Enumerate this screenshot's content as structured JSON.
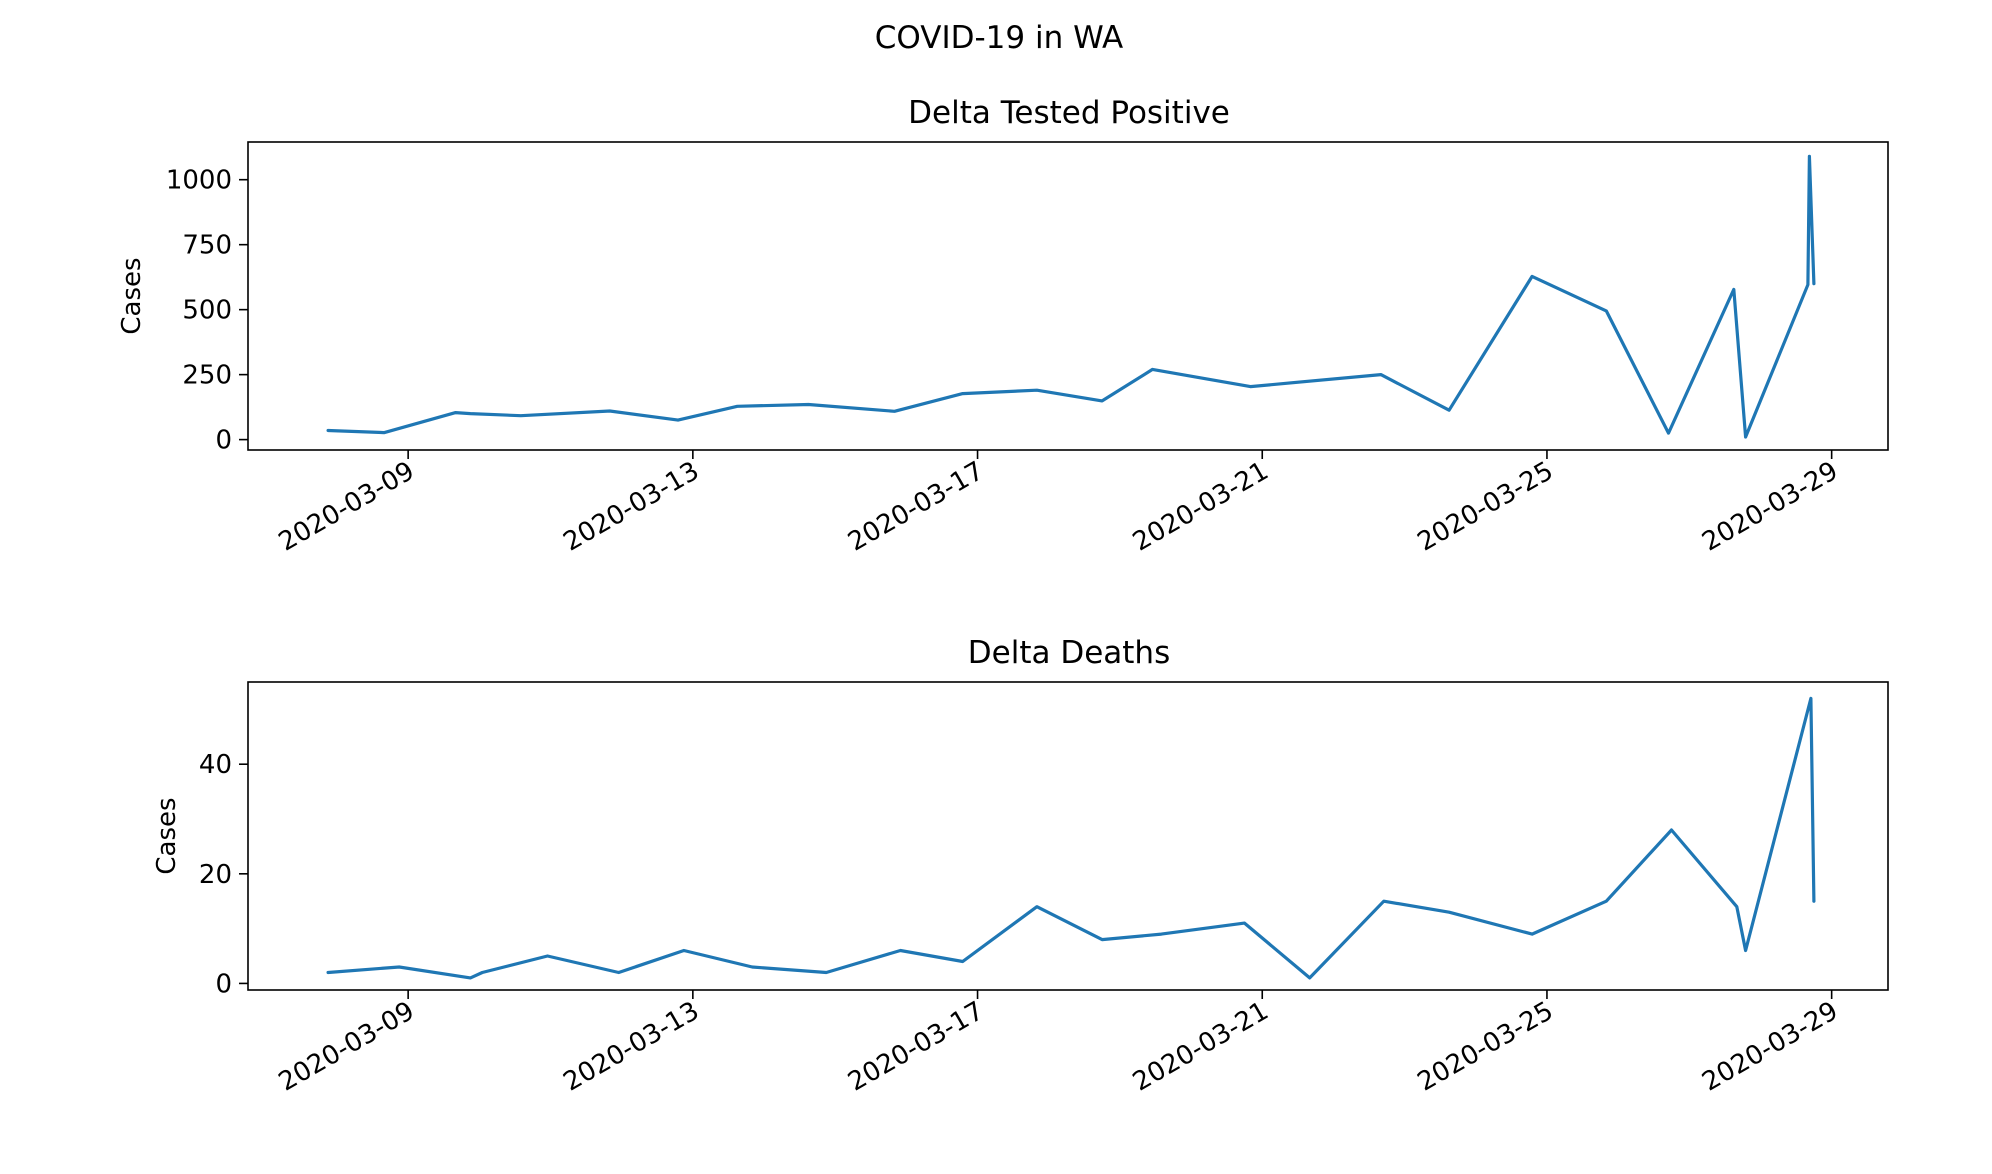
{
  "figure": {
    "suptitle": "COVID-19 in WA",
    "line_color": "#1f77b4"
  },
  "chart_data": [
    {
      "type": "line",
      "title": "Delta Tested Positive",
      "xlabel": "",
      "ylabel": "Cases",
      "xlim": [
        "2020-03-06T18:00",
        "2020-03-29T19:00"
      ],
      "ylim": [
        -40,
        1145
      ],
      "xticks": [
        "2020-03-09",
        "2020-03-13",
        "2020-03-17",
        "2020-03-21",
        "2020-03-25",
        "2020-03-29"
      ],
      "yticks": [
        0,
        250,
        500,
        750,
        1000
      ],
      "ytick_labels": [
        "0",
        "250",
        "500",
        "750",
        "1000"
      ],
      "grid": false,
      "series": [
        {
          "x": [
            "2020-03-07T21:00",
            "2020-03-08T16:00",
            "2020-03-09T16:00",
            "2020-03-09T21:00",
            "2020-03-10T14:00",
            "2020-03-11T20:00",
            "2020-03-12T19:00",
            "2020-03-13T15:00",
            "2020-03-14T15:00",
            "2020-03-15T20:00",
            "2020-03-16T19:00",
            "2020-03-17T20:00",
            "2020-03-18T18:00",
            "2020-03-19T11:00",
            "2020-03-20T20:00",
            "2020-03-22T16:00",
            "2020-03-23T15:00",
            "2020-03-24T19:00",
            "2020-03-25T20:00",
            "2020-03-26T17:00",
            "2020-03-27T15:00",
            "2020-03-27T19:00",
            "2020-03-28T16:00",
            "2020-03-28T16:30",
            "2020-03-28T18:00"
          ],
          "y": [
            35,
            27,
            104,
            100,
            92,
            110,
            75,
            128,
            135,
            109,
            177,
            190,
            149,
            270,
            204,
            250,
            113,
            628,
            495,
            25,
            578,
            10,
            596,
            1090,
            600
          ]
        }
      ]
    },
    {
      "type": "line",
      "title": "Delta Deaths",
      "xlabel": "",
      "ylabel": "Cases",
      "xlim": [
        "2020-03-06T18:00",
        "2020-03-29T19:00"
      ],
      "ylim": [
        -1.2,
        55
      ],
      "xticks": [
        "2020-03-09",
        "2020-03-13",
        "2020-03-17",
        "2020-03-21",
        "2020-03-25",
        "2020-03-29"
      ],
      "yticks": [
        0,
        20,
        40
      ],
      "ytick_labels": [
        "0",
        "20",
        "40"
      ],
      "grid": false,
      "series": [
        {
          "x": [
            "2020-03-07T21:00",
            "2020-03-08T21:00",
            "2020-03-09T21:00",
            "2020-03-10T01:00",
            "2020-03-10T23:00",
            "2020-03-11T23:00",
            "2020-03-12T21:00",
            "2020-03-13T20:00",
            "2020-03-14T21:00",
            "2020-03-15T22:00",
            "2020-03-16T19:00",
            "2020-03-17T20:00",
            "2020-03-18T18:00",
            "2020-03-19T14:00",
            "2020-03-20T18:00",
            "2020-03-21T16:00",
            "2020-03-22T17:00",
            "2020-03-23T15:00",
            "2020-03-24T19:00",
            "2020-03-25T20:00",
            "2020-03-26T18:00",
            "2020-03-27T16:00",
            "2020-03-27T19:00",
            "2020-03-28T17:00",
            "2020-03-28T18:00"
          ],
          "y": [
            2,
            3,
            1,
            2,
            5,
            2,
            6,
            3,
            2,
            6,
            4,
            14,
            8,
            9,
            11,
            1,
            15,
            13,
            9,
            15,
            28,
            14,
            6,
            52,
            15
          ]
        }
      ]
    }
  ]
}
